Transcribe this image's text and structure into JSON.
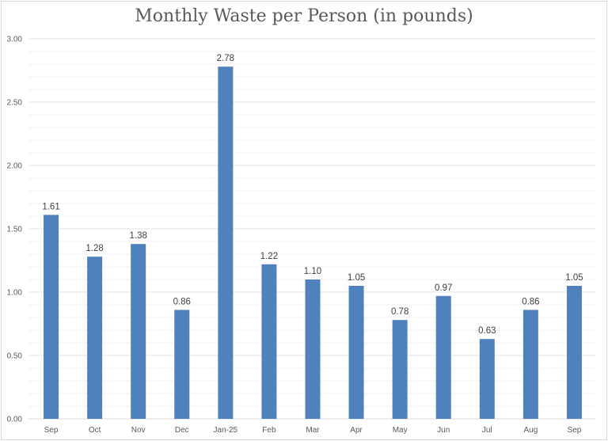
{
  "chart_data": {
    "type": "bar",
    "title": "Monthly Waste per Person (in pounds)",
    "xlabel": "",
    "ylabel": "",
    "categories": [
      "Sep",
      "Oct",
      "Nov",
      "Dec",
      "Jan-25",
      "Feb",
      "Mar",
      "Apr",
      "May",
      "Jun",
      "Jul",
      "Aug",
      "Sep"
    ],
    "values": [
      1.61,
      1.28,
      1.38,
      0.86,
      2.78,
      1.22,
      1.1,
      1.05,
      0.78,
      0.97,
      0.63,
      0.86,
      1.05
    ],
    "data_labels": [
      "1.61",
      "1.28",
      "1.38",
      "0.86",
      "2.78",
      "1.22",
      "1.10",
      "1.05",
      "0.78",
      "0.97",
      "0.63",
      "0.86",
      "1.05"
    ],
    "ylim": [
      0,
      3
    ],
    "yticks": [
      "0.00",
      "0.50",
      "1.00",
      "1.50",
      "2.00",
      "2.50",
      "3.00"
    ],
    "grid": true,
    "minor_grid_step": 0.1,
    "legend": "none",
    "bar_color": "#4f81bd"
  }
}
